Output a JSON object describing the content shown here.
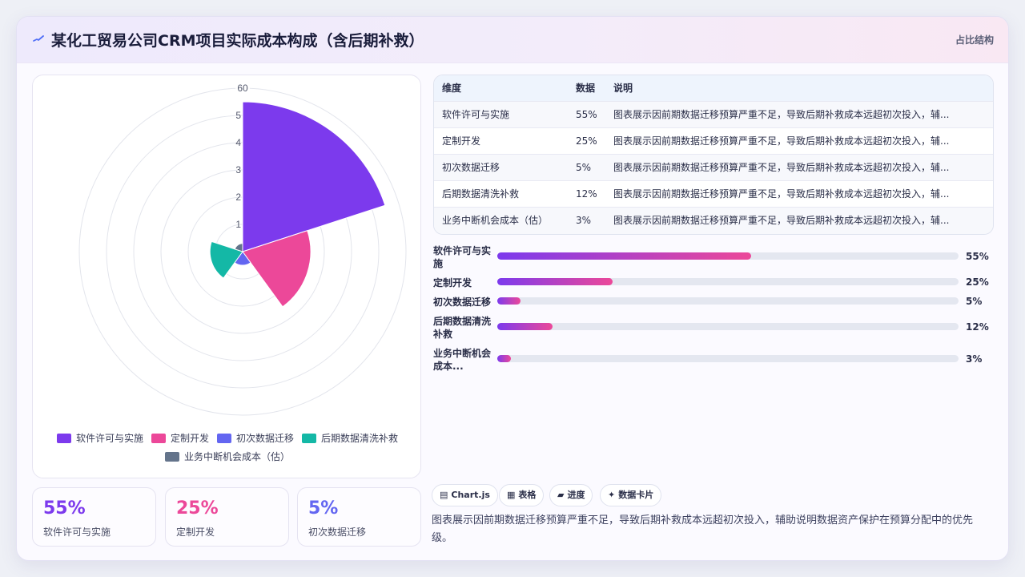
{
  "header": {
    "title": "某化工贸易公司CRM项目实际成本构成（含后期补救）",
    "tag": "占比结构",
    "icon": "pulse-icon"
  },
  "colors": {
    "purple": "#7c3aed",
    "pink": "#ec4899",
    "indigo": "#6366f1",
    "teal": "#14b8a6",
    "slate": "#64748b"
  },
  "chart_data": {
    "type": "polarArea",
    "categories": [
      "软件许可与实施",
      "定制开发",
      "初次数据迁移",
      "后期数据清洗补救",
      "业务中断机会成本（估）"
    ],
    "values": [
      55,
      25,
      5,
      12,
      3
    ],
    "unit": "%",
    "rlim": [
      0,
      60
    ],
    "ticks": [
      "60",
      "5",
      "4",
      "3",
      "2",
      "1"
    ],
    "colors": [
      "#7c3aed",
      "#ec4899",
      "#6366f1",
      "#14b8a6",
      "#64748b"
    ],
    "legend_position": "bottom"
  },
  "table": {
    "headers": [
      "维度",
      "数据",
      "说明"
    ],
    "rows": [
      [
        "软件许可与实施",
        "55%",
        "图表展示因前期数据迁移预算严重不足，导致后期补救成本远超初次投入，辅..."
      ],
      [
        "定制开发",
        "25%",
        "图表展示因前期数据迁移预算严重不足，导致后期补救成本远超初次投入，辅..."
      ],
      [
        "初次数据迁移",
        "5%",
        "图表展示因前期数据迁移预算严重不足，导致后期补救成本远超初次投入，辅..."
      ],
      [
        "后期数据清洗补救",
        "12%",
        "图表展示因前期数据迁移预算严重不足，导致后期补救成本远超初次投入，辅..."
      ],
      [
        "业务中断机会成本（估）",
        "3%",
        "图表展示因前期数据迁移预算严重不足，导致后期补救成本远超初次投入，辅..."
      ]
    ]
  },
  "progress": [
    {
      "label": "软件许可与实施",
      "value": 55,
      "display": "55%"
    },
    {
      "label": "定制开发",
      "value": 25,
      "display": "25%"
    },
    {
      "label": "初次数据迁移",
      "value": 5,
      "display": "5%"
    },
    {
      "label": "后期数据清洗补救",
      "value": 12,
      "display": "12%"
    },
    {
      "label": "业务中断机会成本...",
      "value": 3,
      "display": "3%"
    }
  ],
  "stats": [
    {
      "value": "55%",
      "label": "软件许可与实施",
      "color": "#7c3aed"
    },
    {
      "value": "25%",
      "label": "定制开发",
      "color": "#ec4899"
    },
    {
      "value": "5%",
      "label": "初次数据迁移",
      "color": "#6366f1"
    }
  ],
  "chips": [
    {
      "icon": "▤",
      "icon_name": "chart-icon",
      "label": "Chart.js"
    },
    {
      "icon": "▦",
      "icon_name": "table-icon",
      "label": "表格"
    },
    {
      "icon": "▰",
      "icon_name": "progress-icon",
      "label": "进度"
    },
    {
      "icon": "✦",
      "icon_name": "sparkle-icon",
      "label": "数据卡片"
    }
  ],
  "note": "图表展示因前期数据迁移预算严重不足，导致后期补救成本远超初次投入，辅助说明数据资产保护在预算分配中的优先级。"
}
